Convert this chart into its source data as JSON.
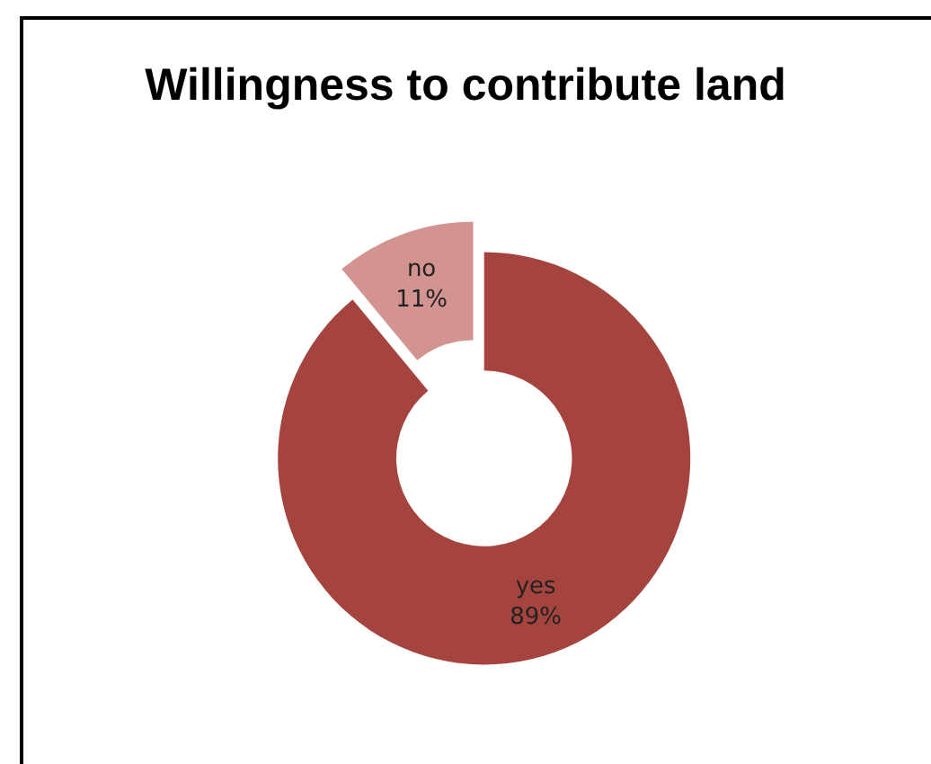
{
  "chart_data": {
    "type": "donut",
    "title": "Willingness to contribute land",
    "categories": [
      "yes",
      "no"
    ],
    "values": [
      89,
      11
    ],
    "colors": [
      "#a5443f",
      "#d39491"
    ],
    "value_labels": [
      "89%",
      "11%"
    ]
  }
}
